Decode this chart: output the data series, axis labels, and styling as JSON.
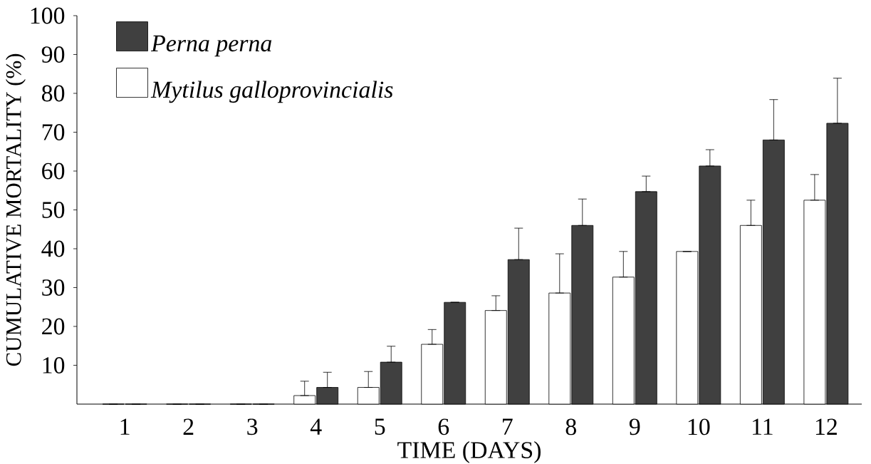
{
  "chart_data": {
    "type": "bar",
    "xlabel": "TIME (DAYS)",
    "ylabel": "CUMULATIVE  MORTALITY (%)",
    "categories": [
      "1",
      "2",
      "3",
      "4",
      "5",
      "6",
      "7",
      "8",
      "9",
      "10",
      "11",
      "12"
    ],
    "series": [
      {
        "name": "Mytilus galloprovincialis",
        "color": "#ffffff",
        "values": [
          0,
          0,
          0,
          2.2,
          4.3,
          15.4,
          24.1,
          28.6,
          32.7,
          39.3,
          46.0,
          52.5
        ],
        "errors": [
          null,
          null,
          null,
          [
            2.2,
            5.9
          ],
          [
            4.3,
            8.4
          ],
          [
            15.4,
            19.2
          ],
          [
            24.1,
            27.9
          ],
          [
            28.6,
            38.7
          ],
          [
            32.7,
            39.3
          ],
          null,
          [
            46.0,
            52.5
          ],
          [
            52.5,
            59.1
          ]
        ]
      },
      {
        "name": "Perna perna",
        "color": "#404040",
        "values": [
          0,
          0,
          0,
          4.3,
          10.8,
          26.2,
          37.2,
          46.0,
          54.7,
          61.3,
          68.0,
          72.3
        ],
        "errors": [
          null,
          null,
          null,
          [
            4.3,
            8.2
          ],
          [
            10.8,
            14.9
          ],
          null,
          [
            37.2,
            45.3
          ],
          [
            46.0,
            52.8
          ],
          [
            54.7,
            58.7
          ],
          [
            61.3,
            65.5
          ],
          [
            68.0,
            78.4
          ],
          [
            72.3,
            83.9
          ]
        ]
      }
    ],
    "ylim": [
      0,
      100
    ],
    "yticks": [
      10,
      20,
      30,
      40,
      50,
      60,
      70,
      80,
      90,
      100
    ],
    "legend": "top left"
  }
}
